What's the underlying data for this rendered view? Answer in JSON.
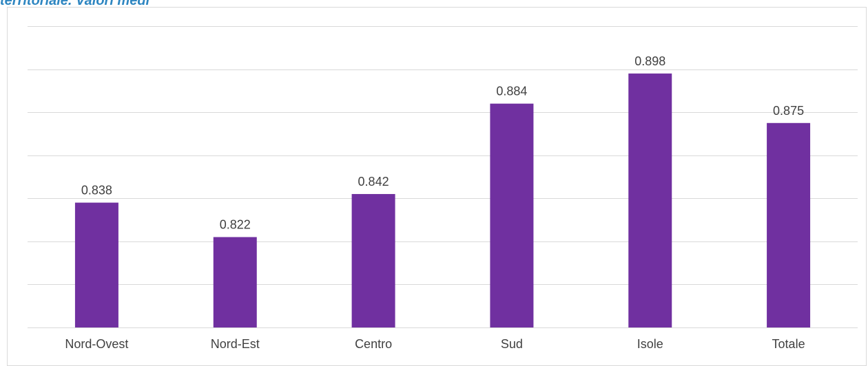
{
  "heading": "territoriale. Valori medi",
  "chart_data": {
    "type": "bar",
    "categories": [
      "Nord-Ovest",
      "Nord-Est",
      "Centro",
      "Sud",
      "Isole",
      "Totale"
    ],
    "values": [
      0.838,
      0.822,
      0.842,
      0.884,
      0.898,
      0.875
    ],
    "data_labels": [
      "0.838",
      "0.822",
      "0.842",
      "0.884",
      "0.898",
      "0.875"
    ],
    "ylim": [
      0.78,
      0.92
    ],
    "grid": true,
    "bar_color": "#7030a0",
    "gridline_color": "#d9d9d9",
    "label_color": "#404040"
  }
}
